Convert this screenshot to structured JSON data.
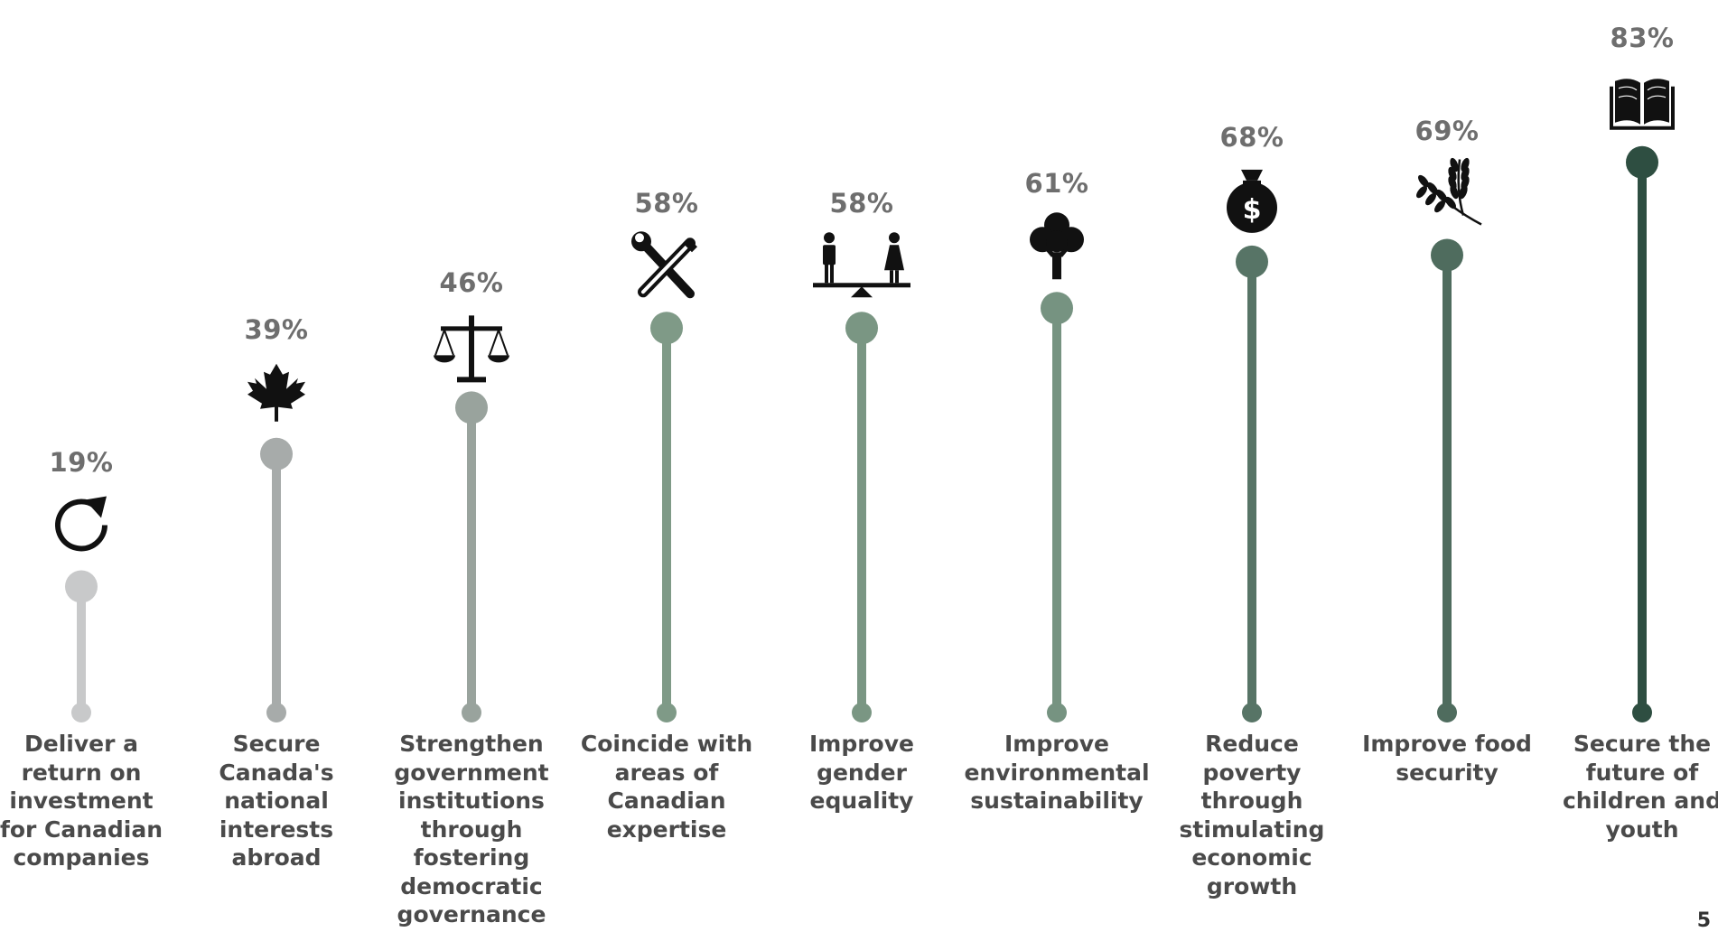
{
  "chart_data": {
    "type": "lollipop",
    "categories": [
      "Deliver a\nreturn on\ninvestment\nfor Canadian\ncompanies",
      "Secure\nCanada's\nnational\ninterests\nabroad",
      "Strengthen\ngovernment\ninstitutions\nthrough\nfostering\ndemocratic\ngovernance",
      "Coincide with\nareas of\nCanadian\nexpertise",
      "Improve\ngender\nequality",
      "Improve\nenvironmental\nsustainability",
      "Reduce\npoverty\nthrough\nstimulating\neconomic\ngrowth",
      "Improve food\nsecurity",
      "Secure the\nfuture of\nchildren and\nyouth"
    ],
    "values": [
      19,
      39,
      46,
      58,
      58,
      61,
      68,
      69,
      83
    ],
    "value_labels": [
      "19%",
      "39%",
      "46%",
      "58%",
      "58%",
      "61%",
      "68%",
      "69%",
      "83%"
    ],
    "icons": [
      "refresh-icon",
      "maple-leaf-icon",
      "scales-of-justice-icon",
      "tools-icon",
      "gender-balance-icon",
      "tree-icon",
      "money-bag-icon",
      "wheat-icon",
      "book-icon"
    ],
    "colors": [
      "#c8c9ca",
      "#a7abaa",
      "#99a39d",
      "#7f9a87",
      "#7a9683",
      "#769381",
      "#577466",
      "#4f6c5e",
      "#2e4e41"
    ],
    "icon_color": "#111111",
    "label_color": "#4a4a4a",
    "value_label_color": "#6e6e6e",
    "ylim": [
      0,
      100
    ],
    "grid": false,
    "legend": "none"
  },
  "page_number": "5"
}
